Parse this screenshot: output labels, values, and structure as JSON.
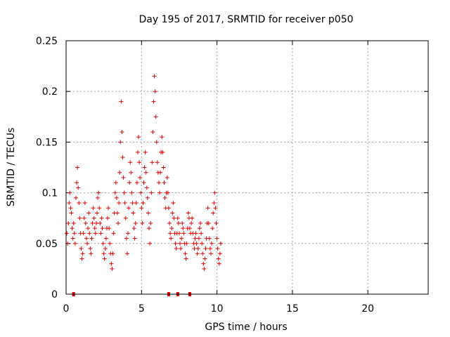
{
  "chart_data": {
    "type": "scatter",
    "title": "Day 195 of 2017, SRMTID for receiver p050",
    "xlabel": "GPS time / hours",
    "ylabel": "SRMTID / TECUs",
    "xlim": [
      0,
      24
    ],
    "ylim": [
      0,
      0.25
    ],
    "x_ticks": [
      0,
      5,
      10,
      15,
      20
    ],
    "y_ticks": [
      0,
      0.05,
      0.1,
      0.15,
      0.2,
      0.25
    ],
    "x_tick_labels": [
      "0",
      "5",
      "10",
      "15",
      "20"
    ],
    "y_tick_labels": [
      "0",
      "0.05",
      "0.1",
      "0.15",
      "0.2",
      "0.25"
    ],
    "grid": true,
    "marker": "plus",
    "color": "#e60000",
    "zero_markers_x": [
      0.5,
      6.8,
      7.4,
      8.2
    ],
    "series": [
      {
        "name": "SRMTID",
        "points": [
          [
            0.05,
            0.06
          ],
          [
            0.1,
            0.05
          ],
          [
            0.15,
            0.07
          ],
          [
            0.2,
            0.09
          ],
          [
            0.25,
            0.1
          ],
          [
            0.3,
            0.085
          ],
          [
            0.35,
            0.08
          ],
          [
            0.4,
            0.065
          ],
          [
            0.45,
            0.055
          ],
          [
            0.5,
            0.07
          ],
          [
            0.55,
            0.06
          ],
          [
            0.6,
            0.05
          ],
          [
            0.65,
            0.095
          ],
          [
            0.7,
            0.11
          ],
          [
            0.75,
            0.125
          ],
          [
            0.8,
            0.105
          ],
          [
            0.85,
            0.09
          ],
          [
            0.9,
            0.075
          ],
          [
            0.95,
            0.06
          ],
          [
            1.0,
            0.045
          ],
          [
            1.05,
            0.035
          ],
          [
            1.1,
            0.04
          ],
          [
            1.15,
            0.06
          ],
          [
            1.2,
            0.075
          ],
          [
            1.25,
            0.09
          ],
          [
            1.3,
            0.07
          ],
          [
            1.35,
            0.055
          ],
          [
            1.4,
            0.05
          ],
          [
            1.45,
            0.065
          ],
          [
            1.5,
            0.08
          ],
          [
            1.55,
            0.06
          ],
          [
            1.6,
            0.045
          ],
          [
            1.65,
            0.04
          ],
          [
            1.7,
            0.055
          ],
          [
            1.75,
            0.07
          ],
          [
            1.8,
            0.085
          ],
          [
            1.85,
            0.075
          ],
          [
            1.9,
            0.065
          ],
          [
            1.95,
            0.06
          ],
          [
            2.0,
            0.07
          ],
          [
            2.05,
            0.08
          ],
          [
            2.1,
            0.095
          ],
          [
            2.15,
            0.1
          ],
          [
            2.2,
            0.085
          ],
          [
            2.25,
            0.07
          ],
          [
            2.3,
            0.06
          ],
          [
            2.35,
            0.075
          ],
          [
            2.4,
            0.065
          ],
          [
            2.45,
            0.05
          ],
          [
            2.5,
            0.04
          ],
          [
            2.55,
            0.035
          ],
          [
            2.6,
            0.045
          ],
          [
            2.65,
            0.055
          ],
          [
            2.7,
            0.065
          ],
          [
            2.75,
            0.075
          ],
          [
            2.8,
            0.085
          ],
          [
            2.85,
            0.065
          ],
          [
            2.9,
            0.05
          ],
          [
            2.95,
            0.04
          ],
          [
            3.0,
            0.03
          ],
          [
            3.05,
            0.025
          ],
          [
            3.1,
            0.04
          ],
          [
            3.15,
            0.06
          ],
          [
            3.2,
            0.08
          ],
          [
            3.25,
            0.1
          ],
          [
            3.3,
            0.11
          ],
          [
            3.35,
            0.095
          ],
          [
            3.4,
            0.08
          ],
          [
            3.45,
            0.07
          ],
          [
            3.5,
            0.09
          ],
          [
            3.55,
            0.12
          ],
          [
            3.6,
            0.15
          ],
          [
            3.65,
            0.19
          ],
          [
            3.7,
            0.16
          ],
          [
            3.75,
            0.135
          ],
          [
            3.8,
            0.115
          ],
          [
            3.85,
            0.1
          ],
          [
            3.9,
            0.09
          ],
          [
            3.95,
            0.075
          ],
          [
            4.0,
            0.055
          ],
          [
            4.05,
            0.04
          ],
          [
            4.1,
            0.06
          ],
          [
            4.15,
            0.085
          ],
          [
            4.2,
            0.11
          ],
          [
            4.25,
            0.13
          ],
          [
            4.3,
            0.12
          ],
          [
            4.35,
            0.1
          ],
          [
            4.4,
            0.09
          ],
          [
            4.45,
            0.08
          ],
          [
            4.5,
            0.065
          ],
          [
            4.55,
            0.055
          ],
          [
            4.6,
            0.07
          ],
          [
            4.65,
            0.09
          ],
          [
            4.7,
            0.11
          ],
          [
            4.75,
            0.14
          ],
          [
            4.8,
            0.155
          ],
          [
            4.85,
            0.13
          ],
          [
            4.9,
            0.115
          ],
          [
            4.95,
            0.1
          ],
          [
            5.0,
            0.085
          ],
          [
            5.05,
            0.07
          ],
          [
            5.1,
            0.09
          ],
          [
            5.15,
            0.11
          ],
          [
            5.2,
            0.125
          ],
          [
            5.25,
            0.14
          ],
          [
            5.3,
            0.12
          ],
          [
            5.35,
            0.105
          ],
          [
            5.4,
            0.095
          ],
          [
            5.45,
            0.08
          ],
          [
            5.5,
            0.065
          ],
          [
            5.55,
            0.05
          ],
          [
            5.6,
            0.07
          ],
          [
            5.65,
            0.1
          ],
          [
            5.7,
            0.13
          ],
          [
            5.75,
            0.16
          ],
          [
            5.8,
            0.19
          ],
          [
            5.85,
            0.215
          ],
          [
            5.9,
            0.2
          ],
          [
            5.95,
            0.175
          ],
          [
            6.0,
            0.15
          ],
          [
            6.05,
            0.13
          ],
          [
            6.1,
            0.12
          ],
          [
            6.15,
            0.11
          ],
          [
            6.2,
            0.1
          ],
          [
            6.25,
            0.12
          ],
          [
            6.3,
            0.14
          ],
          [
            6.35,
            0.155
          ],
          [
            6.4,
            0.14
          ],
          [
            6.45,
            0.125
          ],
          [
            6.5,
            0.11
          ],
          [
            6.55,
            0.095
          ],
          [
            6.6,
            0.085
          ],
          [
            6.65,
            0.1
          ],
          [
            6.7,
            0.115
          ],
          [
            6.75,
            0.1
          ],
          [
            6.8,
            0.085
          ],
          [
            6.85,
            0.07
          ],
          [
            6.9,
            0.06
          ],
          [
            6.95,
            0.055
          ],
          [
            7.0,
            0.065
          ],
          [
            7.05,
            0.08
          ],
          [
            7.1,
            0.09
          ],
          [
            7.15,
            0.075
          ],
          [
            7.2,
            0.06
          ],
          [
            7.25,
            0.05
          ],
          [
            7.3,
            0.045
          ],
          [
            7.35,
            0.06
          ],
          [
            7.4,
            0.075
          ],
          [
            7.45,
            0.07
          ],
          [
            7.5,
            0.06
          ],
          [
            7.55,
            0.05
          ],
          [
            7.6,
            0.045
          ],
          [
            7.65,
            0.055
          ],
          [
            7.7,
            0.07
          ],
          [
            7.75,
            0.065
          ],
          [
            7.8,
            0.06
          ],
          [
            7.85,
            0.05
          ],
          [
            7.9,
            0.04
          ],
          [
            7.95,
            0.035
          ],
          [
            8.0,
            0.05
          ],
          [
            8.05,
            0.065
          ],
          [
            8.1,
            0.08
          ],
          [
            8.15,
            0.075
          ],
          [
            8.2,
            0.065
          ],
          [
            8.25,
            0.06
          ],
          [
            8.3,
            0.07
          ],
          [
            8.35,
            0.075
          ],
          [
            8.4,
            0.06
          ],
          [
            8.45,
            0.05
          ],
          [
            8.5,
            0.045
          ],
          [
            8.55,
            0.055
          ],
          [
            8.6,
            0.06
          ],
          [
            8.65,
            0.05
          ],
          [
            8.7,
            0.04
          ],
          [
            8.75,
            0.045
          ],
          [
            8.8,
            0.055
          ],
          [
            8.85,
            0.065
          ],
          [
            8.9,
            0.07
          ],
          [
            8.95,
            0.06
          ],
          [
            9.0,
            0.05
          ],
          [
            9.05,
            0.04
          ],
          [
            9.1,
            0.03
          ],
          [
            9.15,
            0.025
          ],
          [
            9.2,
            0.035
          ],
          [
            9.25,
            0.045
          ],
          [
            9.3,
            0.055
          ],
          [
            9.35,
            0.07
          ],
          [
            9.4,
            0.085
          ],
          [
            9.45,
            0.07
          ],
          [
            9.5,
            0.055
          ],
          [
            9.55,
            0.045
          ],
          [
            9.6,
            0.04
          ],
          [
            9.65,
            0.05
          ],
          [
            9.7,
            0.065
          ],
          [
            9.75,
            0.08
          ],
          [
            9.8,
            0.09
          ],
          [
            9.85,
            0.1
          ],
          [
            9.9,
            0.085
          ],
          [
            9.95,
            0.07
          ],
          [
            10.0,
            0.055
          ],
          [
            10.05,
            0.045
          ],
          [
            10.1,
            0.035
          ],
          [
            10.15,
            0.03
          ],
          [
            10.2,
            0.04
          ],
          [
            10.25,
            0.05
          ]
        ]
      }
    ]
  }
}
